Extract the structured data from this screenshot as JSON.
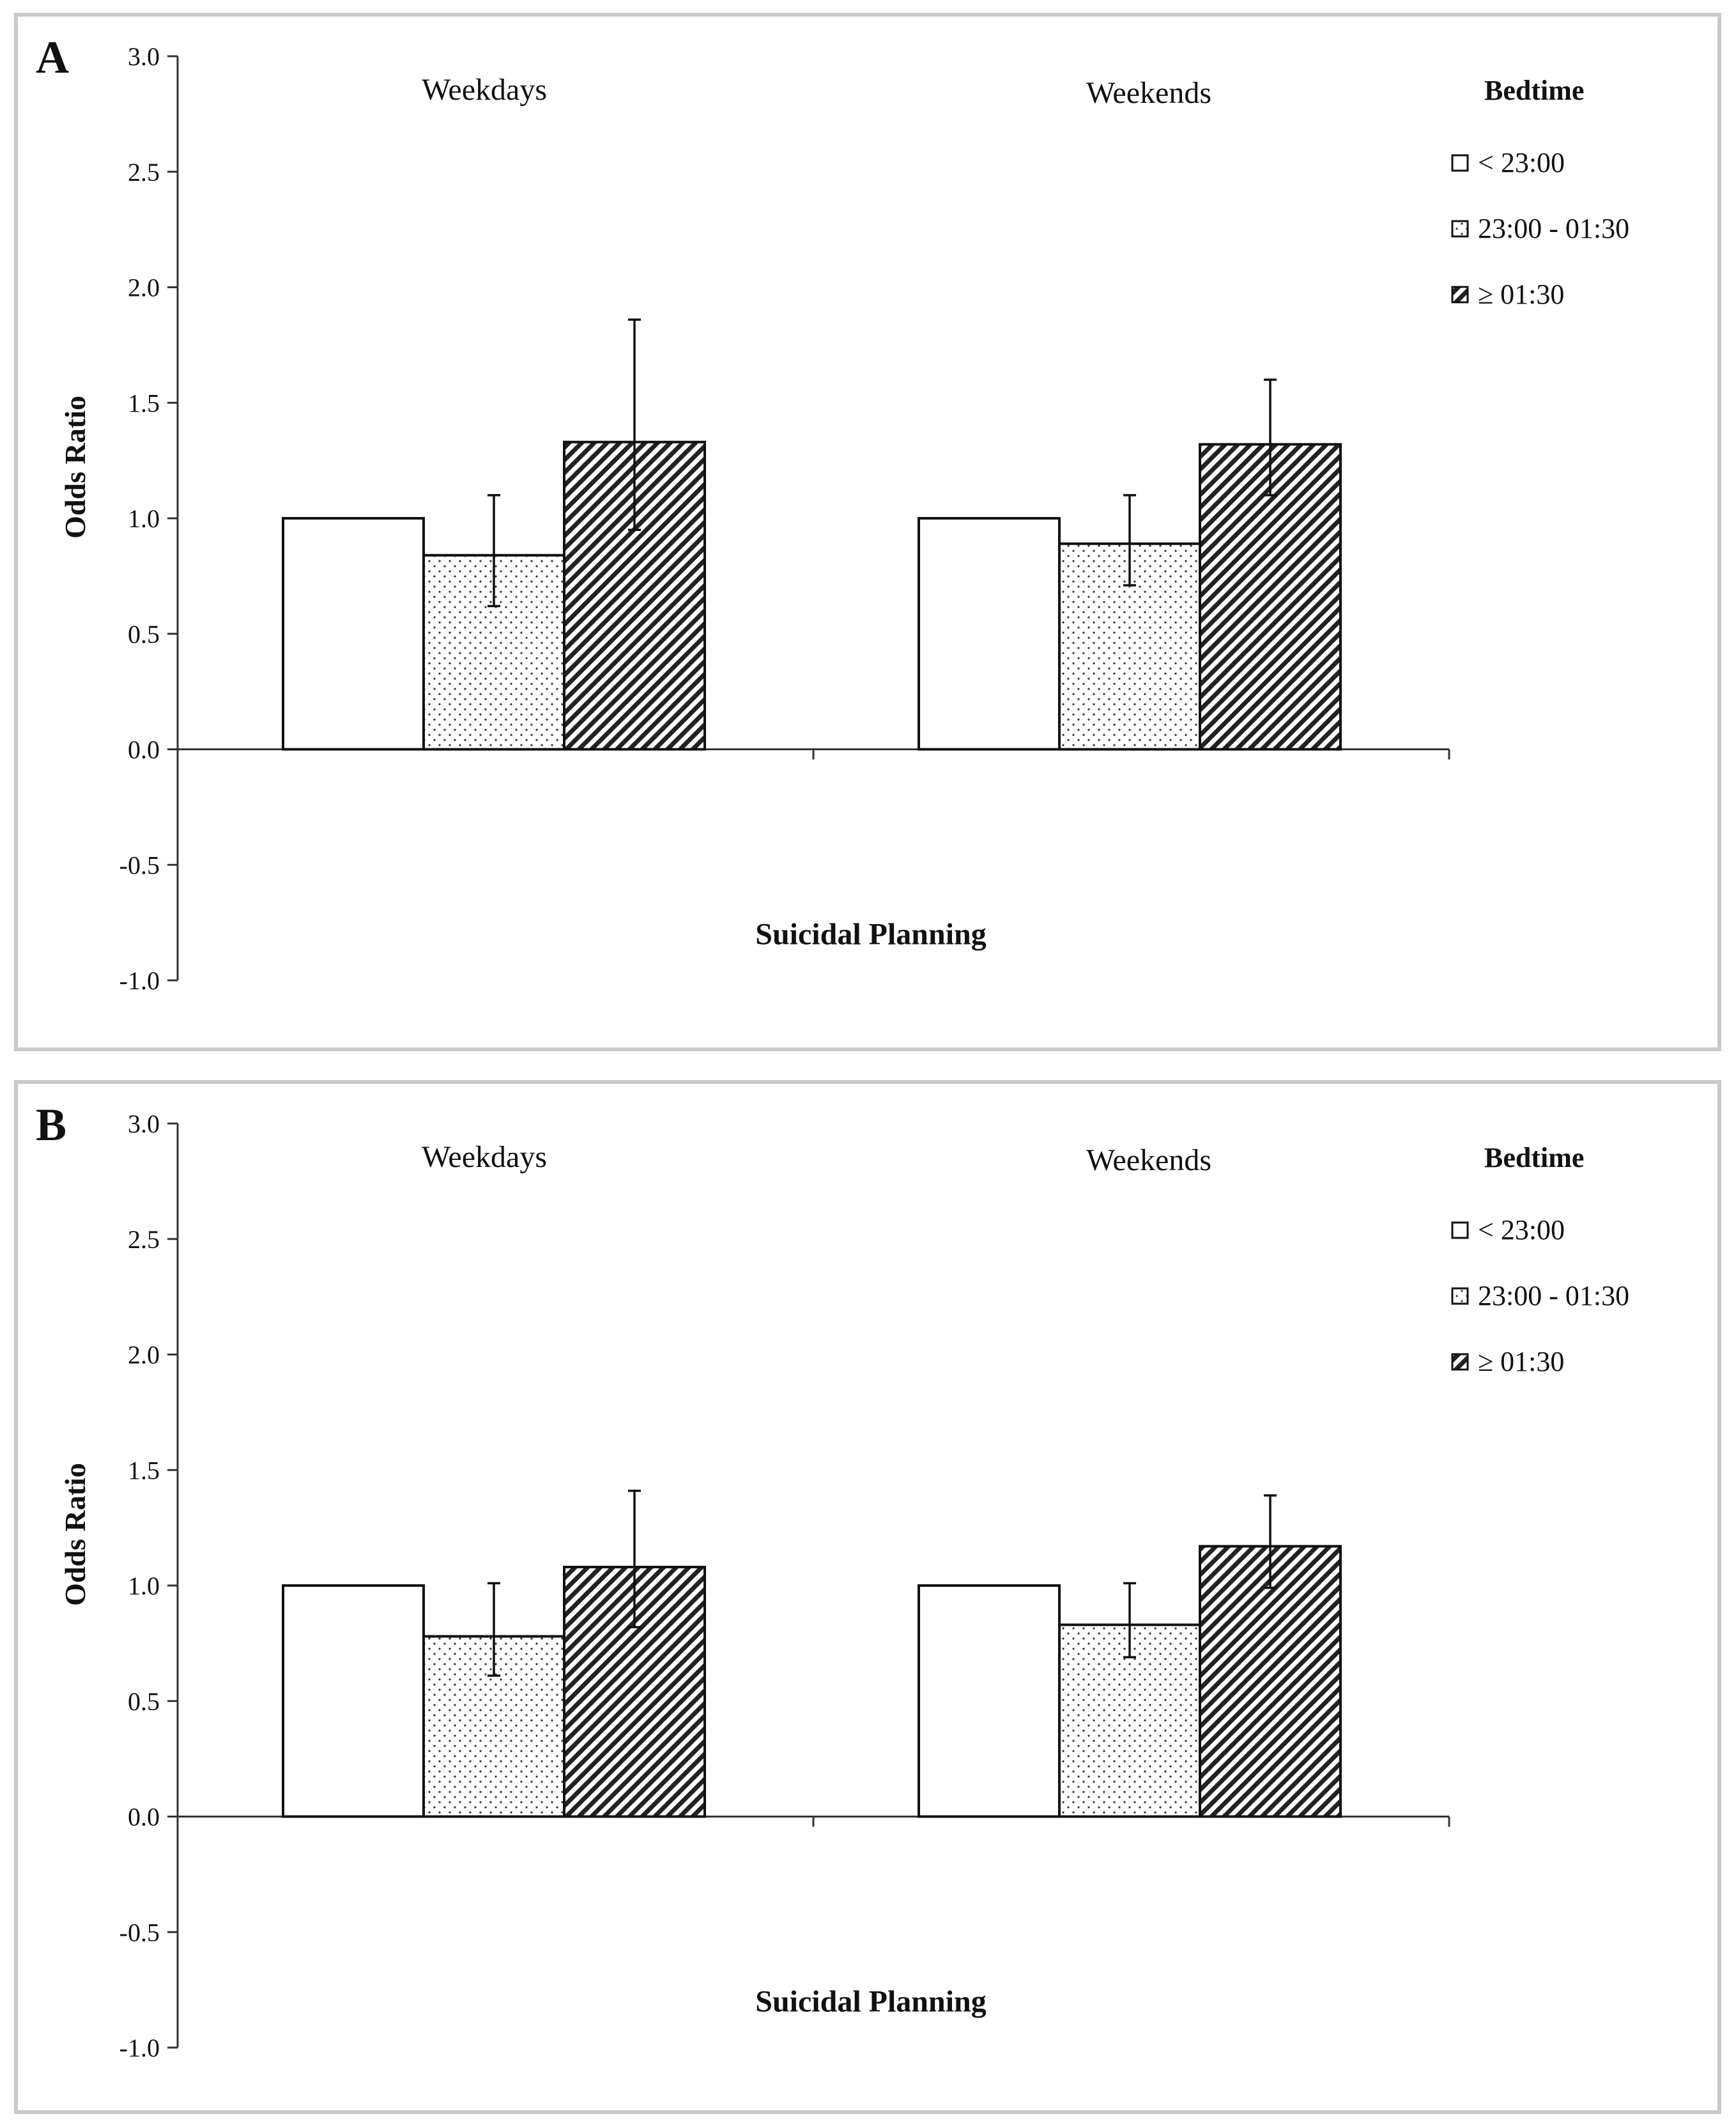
{
  "chart_data": [
    {
      "type": "bar",
      "panel_label": "A",
      "title": "",
      "xlabel": "Suicidal Planning",
      "ylabel": "Odds Ratio",
      "ylim": [
        -1.0,
        3.0
      ],
      "yticks": [
        "3.0",
        "2.5",
        "2.0",
        "1.5",
        "1.0",
        "0.5",
        "0.0",
        "-0.5",
        "-1.0"
      ],
      "categories": [
        "Weekdays",
        "Weekends"
      ],
      "legend_title": "Bedtime",
      "series": [
        {
          "name": "< 23:00",
          "pattern": "white",
          "values": [
            1.0,
            1.0
          ],
          "err_low": [
            null,
            null
          ],
          "err_high": [
            null,
            null
          ]
        },
        {
          "name": "23:00 - 01:30",
          "pattern": "dotted",
          "values": [
            0.84,
            0.89
          ],
          "err_low": [
            0.62,
            0.71
          ],
          "err_high": [
            1.1,
            1.1
          ]
        },
        {
          "name": "≥ 01:30",
          "pattern": "hatched",
          "values": [
            1.33,
            1.32
          ],
          "err_low": [
            0.95,
            1.1
          ],
          "err_high": [
            1.86,
            1.6
          ]
        }
      ]
    },
    {
      "type": "bar",
      "panel_label": "B",
      "title": "",
      "xlabel": "Suicidal Planning",
      "ylabel": "Odds Ratio",
      "ylim": [
        -1.0,
        3.0
      ],
      "yticks": [
        "3.0",
        "2.5",
        "2.0",
        "1.5",
        "1.0",
        "0.5",
        "0.0",
        "-0.5",
        "-1.0"
      ],
      "categories": [
        "Weekdays",
        "Weekends"
      ],
      "legend_title": "Bedtime",
      "series": [
        {
          "name": "< 23:00",
          "pattern": "white",
          "values": [
            1.0,
            1.0
          ],
          "err_low": [
            null,
            null
          ],
          "err_high": [
            null,
            null
          ]
        },
        {
          "name": "23:00 - 01:30",
          "pattern": "dotted",
          "values": [
            0.78,
            0.83
          ],
          "err_low": [
            0.61,
            0.69
          ],
          "err_high": [
            1.01,
            1.01
          ]
        },
        {
          "name": "≥ 01:30",
          "pattern": "hatched",
          "values": [
            1.08,
            1.17
          ],
          "err_low": [
            0.82,
            0.99
          ],
          "err_high": [
            1.41,
            1.39
          ]
        }
      ]
    }
  ]
}
